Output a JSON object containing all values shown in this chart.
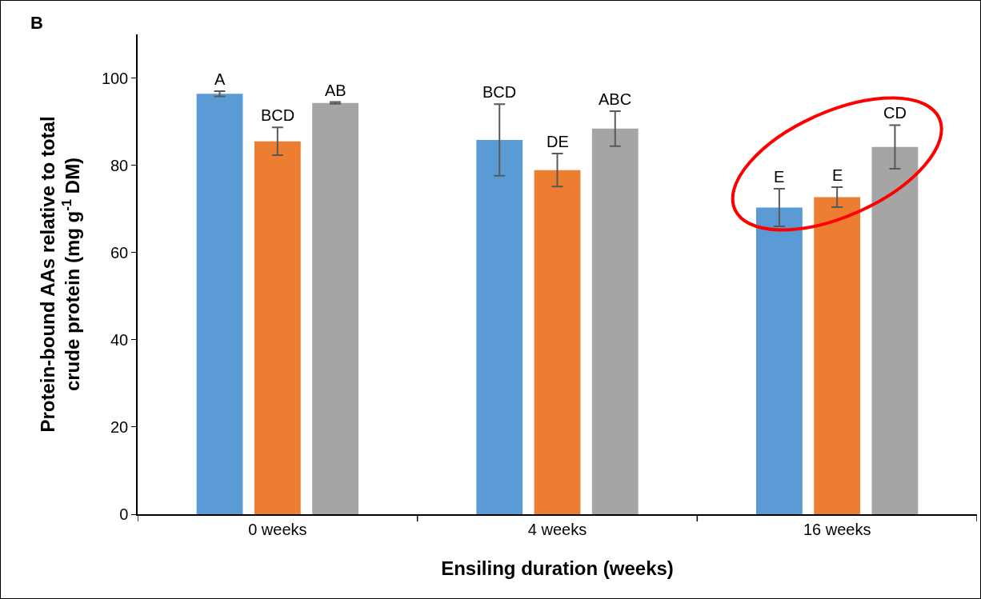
{
  "chart_data": {
    "type": "bar",
    "categories": [
      "0 weeks",
      "4 weeks",
      "16 weeks"
    ],
    "series": [
      {
        "color": "#5b9bd5",
        "values": [
          96.4,
          85.8,
          70.3
        ],
        "errors": [
          0.6,
          8.2,
          4.3
        ]
      },
      {
        "color": "#ed7d31",
        "values": [
          85.5,
          78.9,
          72.7
        ],
        "errors": [
          3.2,
          3.8,
          2.3
        ]
      },
      {
        "color": "#a5a5a5",
        "values": [
          94.3,
          88.4,
          84.2
        ],
        "errors": [
          0.2,
          4.0,
          5.0
        ]
      }
    ],
    "xlabel": "Ensiling duration (weeks)",
    "ylabel": "Protein-bound AAs relative to total crude protein (mg g$^{-1}$ DM)",
    "ylim": [
      0,
      110
    ],
    "yticks": [
      0,
      20,
      40,
      60,
      80,
      100
    ],
    "grid": false,
    "annotations": [
      "B",
      "A",
      "BCD",
      "AB",
      "BCD",
      "DE",
      "ABC",
      "E",
      "E",
      "CD"
    ]
  }
}
